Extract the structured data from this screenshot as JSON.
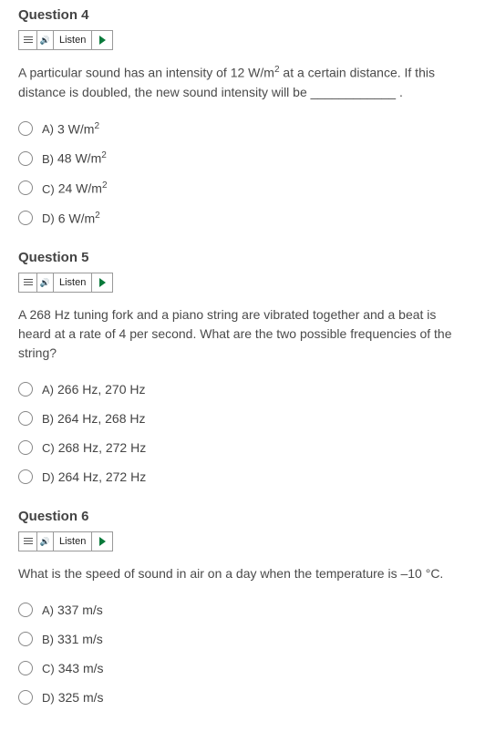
{
  "colors": {
    "text": "#4a4a4a",
    "heading": "#444444",
    "border": "#999999",
    "radio_border": "#888888",
    "play_green": "#0a7a3b",
    "background": "#ffffff"
  },
  "typography": {
    "heading_fontsize": 15,
    "body_fontsize": 14,
    "letter_fontsize": 13,
    "listen_fontsize": 11
  },
  "listen_label": "Listen",
  "questions": [
    {
      "title": "Question 4",
      "prompt_pre": "A particular sound has an intensity of 12 W/m",
      "prompt_sup1": "2",
      "prompt_mid": " at a certain distance. If this distance is doubled, the new sound intensity will be ",
      "blank": "____________",
      "prompt_post": " .",
      "choices": [
        {
          "letter": "A)",
          "pre": "3 W/m",
          "sup": "2",
          "post": ""
        },
        {
          "letter": "B)",
          "pre": "48 W/m",
          "sup": "2",
          "post": ""
        },
        {
          "letter": "C)",
          "pre": "24 W/m",
          "sup": "2",
          "post": ""
        },
        {
          "letter": "D)",
          "pre": "6 W/m",
          "sup": "2",
          "post": ""
        }
      ]
    },
    {
      "title": "Question 5",
      "prompt_pre": "A 268 Hz tuning fork and a piano string are vibrated together and a beat is heard at a rate of 4 per second. What are the two possible frequencies of the string?",
      "prompt_sup1": "",
      "prompt_mid": "",
      "blank": "",
      "prompt_post": "",
      "choices": [
        {
          "letter": "A)",
          "pre": "266 Hz, 270 Hz",
          "sup": "",
          "post": ""
        },
        {
          "letter": "B)",
          "pre": "264 Hz, 268 Hz",
          "sup": "",
          "post": ""
        },
        {
          "letter": "C)",
          "pre": "268 Hz, 272 Hz",
          "sup": "",
          "post": ""
        },
        {
          "letter": "D)",
          "pre": "264 Hz, 272 Hz",
          "sup": "",
          "post": ""
        }
      ]
    },
    {
      "title": "Question 6",
      "prompt_pre": "What is the speed of sound in air on a day when the temperature is –10 °C.",
      "prompt_sup1": "",
      "prompt_mid": "",
      "blank": "",
      "prompt_post": "",
      "choices": [
        {
          "letter": "A)",
          "pre": "337 m/s",
          "sup": "",
          "post": ""
        },
        {
          "letter": "B)",
          "pre": "331 m/s",
          "sup": "",
          "post": ""
        },
        {
          "letter": "C)",
          "pre": "343 m/s",
          "sup": "",
          "post": ""
        },
        {
          "letter": "D)",
          "pre": "325 m/s",
          "sup": "",
          "post": ""
        }
      ]
    }
  ]
}
